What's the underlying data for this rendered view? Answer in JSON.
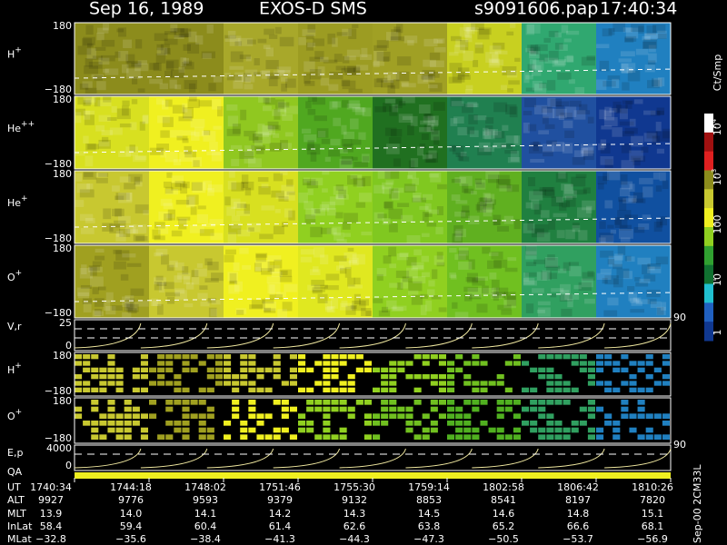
{
  "header": {
    "title": "Sep 16, 1989",
    "instrument": "EXOS-D SMS",
    "file": "s9091606.pap",
    "time": "17:40:34"
  },
  "panels": [
    {
      "label": "H",
      "sup": "+",
      "top": "180",
      "bottom": "−180",
      "colors": [
        "#8c8c1c",
        "#8c8c1c",
        "#a8a82a",
        "#9c9c22",
        "#a0a024",
        "#c8d020",
        "#30a870",
        "#2080c0"
      ]
    },
    {
      "label": "He",
      "sup": "++",
      "top": "180",
      "bottom": "−180",
      "colors": [
        "#d8e020",
        "#f0f020",
        "#90c820",
        "#50a820",
        "#207020",
        "#208050",
        "#2050a0",
        "#103890"
      ]
    },
    {
      "label": "He",
      "sup": "+",
      "top": "180",
      "bottom": "−180",
      "colors": [
        "#c8c830",
        "#f0f020",
        "#d8e020",
        "#90d020",
        "#80c820",
        "#60b020",
        "#208040",
        "#1050a0"
      ]
    },
    {
      "label": "O",
      "sup": "+",
      "top": "180",
      "bottom": "−180",
      "colors": [
        "#a0a020",
        "#c8c830",
        "#f0f020",
        "#e0e820",
        "#90d020",
        "#70c020",
        "#30a060",
        "#2080c0"
      ]
    }
  ],
  "vr": {
    "label": "V,r",
    "top": "25",
    "bottom": "0",
    "right": "90"
  },
  "small_panels": [
    {
      "label": "H",
      "sup": "+",
      "top": "180",
      "bottom": "−180",
      "colors": [
        "#c8c830",
        "#a0a020",
        "#c8c830",
        "#f0f020",
        "#90d020",
        "#70c020",
        "#30a060",
        "#2080c0"
      ]
    },
    {
      "label": "O",
      "sup": "+",
      "top": "180",
      "bottom": "−180",
      "colors": [
        "#c8c830",
        "#a0a020",
        "#f0f020",
        "#90d020",
        "#70c020",
        "#50b020",
        "#30a060",
        "#2080c0"
      ]
    }
  ],
  "ep": {
    "label": "E,p",
    "top": "4000",
    "bottom": "0",
    "right": "90",
    "qa": "QA"
  },
  "colorbar": {
    "unit": "Ct/Smp",
    "ticks": [
      {
        "base": "10",
        "sup": "4"
      },
      {
        "base": "10",
        "sup": "3"
      },
      {
        "base": "100"
      },
      {
        "base": "10"
      },
      {
        "base": "1"
      }
    ],
    "colors": [
      "#ffffff",
      "#a01010",
      "#e02020",
      "#8c8c1c",
      "#c8c830",
      "#f0f020",
      "#90d020",
      "#30a030",
      "#107030",
      "#20c0d0",
      "#2060c0",
      "#103890"
    ]
  },
  "footer": {
    "rows": [
      [
        "UT",
        "1740:34",
        "1744:18",
        "1748:02",
        "1751:46",
        "1755:30",
        "1759:14",
        "1802:58",
        "1806:42",
        "1810:26"
      ],
      [
        "ALT",
        "9927",
        "9776",
        "9593",
        "9379",
        "9132",
        "8853",
        "8541",
        "8197",
        "7820"
      ],
      [
        "MLT",
        "13.9",
        "14.0",
        "14.1",
        "14.2",
        "14.3",
        "14.5",
        "14.6",
        "14.8",
        "15.1"
      ],
      [
        "InLat",
        "58.4",
        "59.4",
        "60.4",
        "61.4",
        "62.6",
        "63.8",
        "65.2",
        "66.6",
        "68.1"
      ],
      [
        "MLat",
        "−32.8",
        "−35.6",
        "−38.4",
        "−41.3",
        "−44.3",
        "−47.3",
        "−50.5",
        "−53.7",
        "−56.9"
      ]
    ],
    "code": "Sep-00 2CM33L"
  }
}
